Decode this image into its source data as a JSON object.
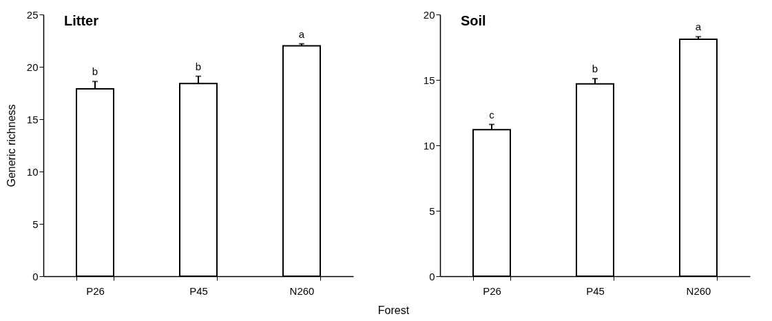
{
  "chart_data": [
    {
      "type": "bar",
      "title": "Litter",
      "ylabel": "Generic richness",
      "xlabel": "Forest",
      "categories": [
        "P26",
        "P45",
        "N260"
      ],
      "values": [
        17.9,
        18.4,
        22.0
      ],
      "errors": [
        [
          17.9,
          18.6
        ],
        [
          18.4,
          19.1
        ],
        [
          22.0,
          22.2
        ]
      ],
      "color": "#ffffff",
      "ylim": [
        0,
        25
      ],
      "yticks": [
        0,
        5,
        10,
        15,
        20,
        25
      ],
      "grid": false,
      "annotations": [
        {
          "text": "b",
          "x": "P26",
          "y": 18.6
        },
        {
          "text": "b",
          "x": "P45",
          "y": 19.1
        },
        {
          "text": "a",
          "x": "N260",
          "y": 22.2
        }
      ]
    },
    {
      "type": "bar",
      "title": "Soil",
      "categories": [
        "P26",
        "P45",
        "N260"
      ],
      "values": [
        11.2,
        14.7,
        18.1
      ],
      "errors": [
        [
          11.2,
          11.6
        ],
        [
          14.7,
          15.1
        ],
        [
          18.1,
          18.3
        ]
      ],
      "color": "#ffffff",
      "ylim": [
        0,
        20
      ],
      "yticks": [
        0,
        5,
        10,
        15,
        20
      ],
      "grid": false,
      "annotations": [
        {
          "text": "c",
          "x": "P26",
          "y": 11.6
        },
        {
          "text": "b",
          "x": "P45",
          "y": 15.1
        },
        {
          "text": "a",
          "x": "N260",
          "y": 18.3
        }
      ]
    }
  ]
}
